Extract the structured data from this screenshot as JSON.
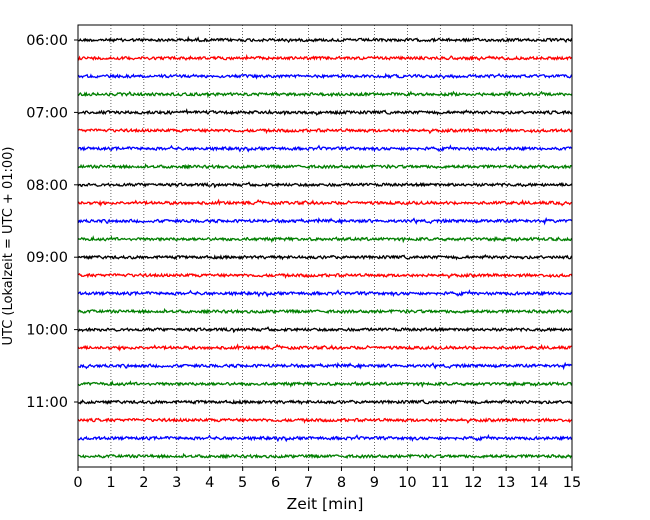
{
  "chart_data": {
    "type": "line",
    "title": "",
    "xlabel": "Zeit  [min]",
    "ylabel": "UTC (Lokalzeit = UTC + 01:00)",
    "xlim": [
      0,
      15
    ],
    "x_ticks": [
      0,
      1,
      2,
      3,
      4,
      5,
      6,
      7,
      8,
      9,
      10,
      11,
      12,
      13,
      14,
      15
    ],
    "x_tick_labels": [
      "0",
      "1",
      "2",
      "3",
      "4",
      "5",
      "6",
      "7",
      "8",
      "9",
      "10",
      "11",
      "12",
      "13",
      "14",
      "15"
    ],
    "y_tick_labels": [
      "06:00",
      "07:00",
      "08:00",
      "09:00",
      "10:00",
      "11:00"
    ],
    "grid": "vertical dotted at each minute",
    "legend": "none",
    "trace_minutes": 15,
    "traces_per_hour": 4,
    "trace_colors": [
      "#000000",
      "#ff0000",
      "#0000ff",
      "#007f00"
    ],
    "trace_starts": [
      "06:00",
      "06:15",
      "06:30",
      "06:45",
      "07:00",
      "07:15",
      "07:30",
      "07:45",
      "08:00",
      "08:15",
      "08:30",
      "08:45",
      "09:00",
      "09:15",
      "09:30",
      "09:45",
      "10:00",
      "10:15",
      "10:30",
      "10:45",
      "11:00",
      "11:15",
      "11:30",
      "11:45"
    ]
  }
}
